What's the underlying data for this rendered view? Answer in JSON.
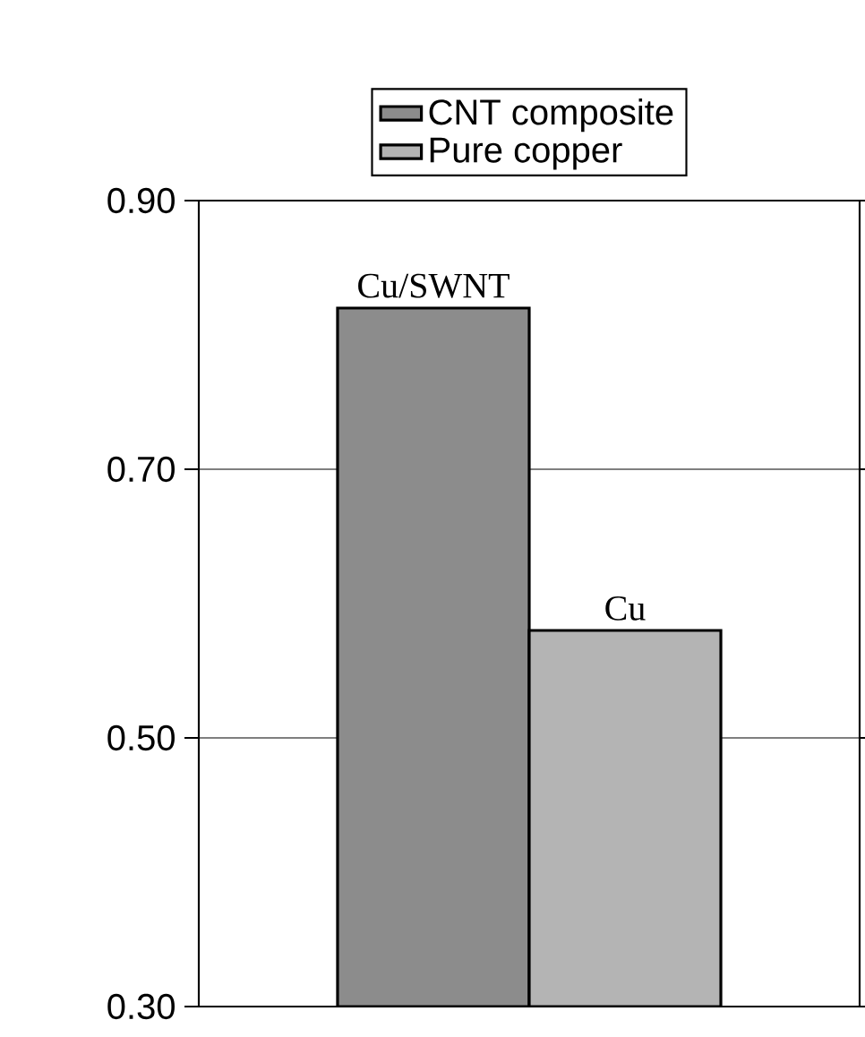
{
  "chart_data": {
    "type": "bar",
    "categories": [
      null
    ],
    "series": [
      {
        "name": "CNT composite",
        "color": "#8c8c8c",
        "values": [
          0.82
        ]
      },
      {
        "name": "Pure copper",
        "color": "#b4b4b4",
        "values": [
          0.58
        ]
      }
    ],
    "annotations": [
      {
        "text": "Cu/SWNT",
        "y": 0.82
      },
      {
        "text": "Cu",
        "y": 0.58
      }
    ],
    "ylim": [
      0.3,
      0.9
    ],
    "yticks": [
      {
        "value": 0.3,
        "label": "0.30"
      },
      {
        "value": 0.5,
        "label": "0.50"
      },
      {
        "value": 0.7,
        "label": "0.70"
      },
      {
        "value": 0.9,
        "label": "0.90"
      }
    ],
    "grid": "y",
    "legend": "top"
  }
}
